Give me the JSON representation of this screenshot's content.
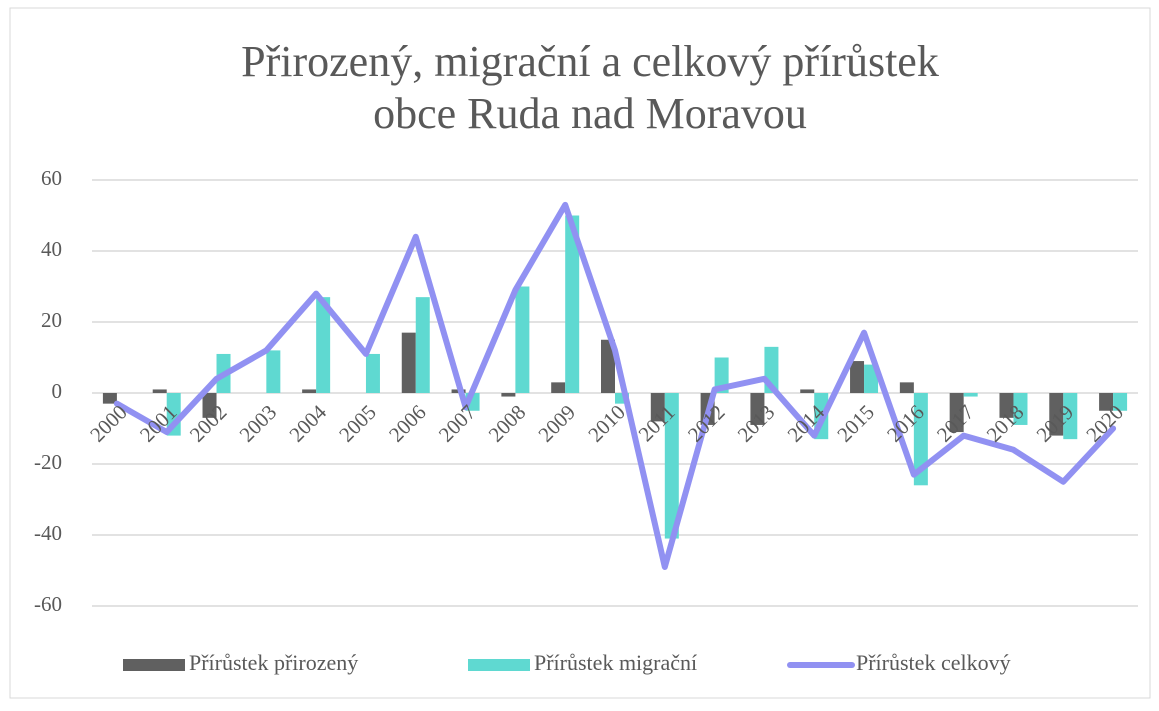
{
  "chart_data": {
    "type": "combo",
    "title": [
      "Přirozený, migrační a celkový přírůstek",
      "obce Ruda nad Moravou"
    ],
    "categories": [
      "2000",
      "2001",
      "2002",
      "2003",
      "2004",
      "2005",
      "2006",
      "2007",
      "2008",
      "2009",
      "2010",
      "2011",
      "2012",
      "2013",
      "2014",
      "2015",
      "2016",
      "2017",
      "2018",
      "2019",
      "2020"
    ],
    "series": [
      {
        "name": "Přírůstek přirozený",
        "type": "bar",
        "color": "#606060",
        "values": [
          -3,
          1,
          -7,
          0,
          1,
          0,
          17,
          1,
          -1,
          3,
          15,
          -8,
          -9,
          -9,
          1,
          9,
          3,
          -11,
          -7,
          -12,
          -5
        ]
      },
      {
        "name": "Přírůstek migrační",
        "type": "bar",
        "color": "#5fd9d1",
        "values": [
          0,
          -12,
          11,
          12,
          27,
          11,
          27,
          -5,
          30,
          50,
          -3,
          -41,
          10,
          13,
          -13,
          8,
          -26,
          -1,
          -9,
          -13,
          -5
        ]
      },
      {
        "name": "Přírůstek celkový",
        "type": "line",
        "color": "#9191f2",
        "values": [
          -3,
          -11,
          4,
          12,
          28,
          11,
          44,
          -4,
          29,
          53,
          12,
          -49,
          1,
          4,
          -12,
          17,
          -23,
          -12,
          -16,
          -25,
          -10
        ]
      }
    ],
    "ylim": [
      -60,
      60
    ],
    "yticks": [
      -60,
      -40,
      -20,
      0,
      20,
      40,
      60
    ],
    "grid": true,
    "legend": "bottom"
  }
}
